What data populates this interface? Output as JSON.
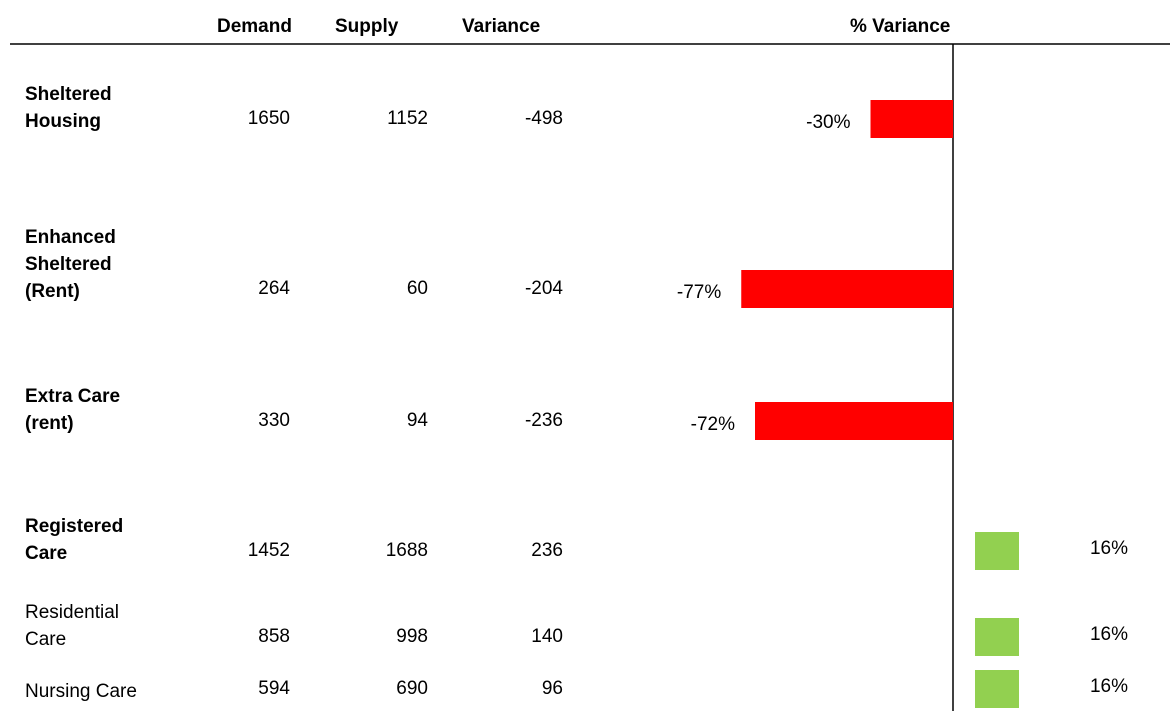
{
  "table": {
    "columns": [
      "Demand",
      "Supply",
      "Variance",
      "% Variance"
    ],
    "rows": [
      {
        "label": "Sheltered Housing",
        "emphasis": true,
        "demand": 1650,
        "supply": 1152,
        "variance": -498,
        "pct_variance": -30,
        "pct_label": "-30%"
      },
      {
        "label": "Enhanced Sheltered (Rent)",
        "emphasis": true,
        "demand": 264,
        "supply": 60,
        "variance": -204,
        "pct_variance": -77,
        "pct_label": "-77%"
      },
      {
        "label": "Extra Care (rent)",
        "emphasis": true,
        "demand": 330,
        "supply": 94,
        "variance": -236,
        "pct_variance": -72,
        "pct_label": "-72%"
      },
      {
        "label": "Registered Care",
        "emphasis": true,
        "demand": 1452,
        "supply": 1688,
        "variance": 236,
        "pct_variance": 16,
        "pct_label": "16%"
      },
      {
        "label": "Residential Care",
        "emphasis": false,
        "demand": 858,
        "supply": 998,
        "variance": 140,
        "pct_variance": 16,
        "pct_label": "16%"
      },
      {
        "label": "Nursing Care",
        "emphasis": false,
        "demand": 594,
        "supply": 690,
        "variance": 96,
        "pct_variance": 16,
        "pct_label": "16%"
      }
    ],
    "negative_color": "#ff0000",
    "positive_color": "#92d050"
  }
}
